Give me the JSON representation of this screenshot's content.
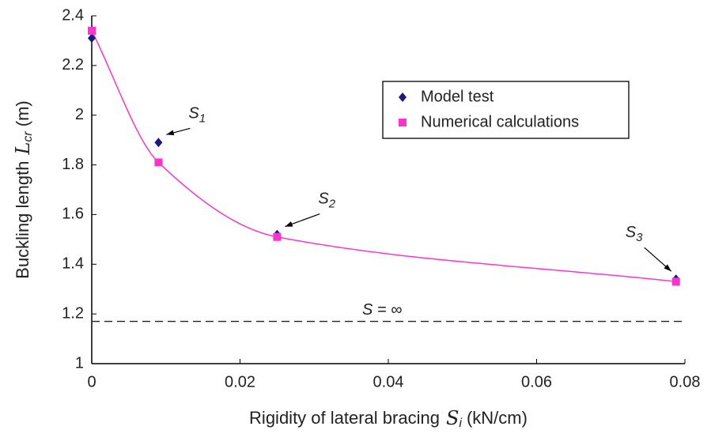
{
  "chart_data": {
    "type": "scatter",
    "xlabel": {
      "text": "Rigidity of lateral bracing",
      "symbol": "S",
      "sub": "i",
      "unit": "(kN/cm)"
    },
    "ylabel": {
      "text": "Buckling length",
      "symbol": "L",
      "sub": "cr",
      "unit": "(m)"
    },
    "series": [
      {
        "name": "Model test",
        "color": "#1a1a80",
        "marker": "diamond",
        "x": [
          0,
          0.009,
          0.025,
          0.0788
        ],
        "values": [
          2.31,
          1.89,
          1.52,
          1.34
        ]
      },
      {
        "name": "Numerical calculations",
        "color": "#ff33cc",
        "marker": "square",
        "x": [
          0,
          0.009,
          0.025,
          0.0788
        ],
        "values": [
          2.34,
          1.81,
          1.51,
          1.33
        ],
        "curve": true
      }
    ],
    "annotations": [
      {
        "text": "S",
        "sub": "1"
      },
      {
        "text": "S",
        "sub": "2"
      },
      {
        "text": "S",
        "sub": "3"
      }
    ],
    "reference_line": {
      "value": 1.17,
      "label": "S = ∞"
    },
    "xlim": [
      0,
      0.08
    ],
    "xticks": [
      0,
      0.02,
      0.04,
      0.06,
      0.08
    ],
    "ylim": [
      1,
      2.4
    ],
    "yticks": [
      1,
      1.2,
      1.4,
      1.6,
      1.8,
      2,
      2.2,
      2.4
    ],
    "legend": "upper right"
  }
}
